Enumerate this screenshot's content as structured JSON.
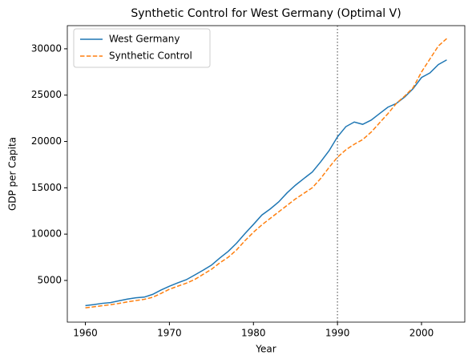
{
  "chart_data": {
    "type": "line",
    "title": "Synthetic Control for West Germany (Optimal V)",
    "xlabel": "Year",
    "ylabel": "GDP per Capita",
    "x": [
      1960,
      1961,
      1962,
      1963,
      1964,
      1965,
      1966,
      1967,
      1968,
      1969,
      1970,
      1971,
      1972,
      1973,
      1974,
      1975,
      1976,
      1977,
      1978,
      1979,
      1980,
      1981,
      1982,
      1983,
      1984,
      1985,
      1986,
      1987,
      1988,
      1989,
      1990,
      1991,
      1992,
      1993,
      1994,
      1995,
      1996,
      1997,
      1998,
      1999,
      2000,
      2001,
      2002,
      2003
    ],
    "series": [
      {
        "name": "West Germany",
        "color": "#1f77b4",
        "linestyle": "solid",
        "values": [
          2284,
          2388,
          2527,
          2610,
          2806,
          2990,
          3131,
          3198,
          3494,
          3968,
          4380,
          4742,
          5074,
          5583,
          6099,
          6645,
          7424,
          8140,
          9030,
          10066,
          11046,
          12060,
          12716,
          13474,
          14450,
          15280,
          16000,
          16700,
          17800,
          19000,
          20500,
          21600,
          22100,
          21850,
          22300,
          23000,
          23700,
          24100,
          24800,
          25700,
          26900,
          27400,
          28300,
          28800
        ]
      },
      {
        "name": "Synthetic Control",
        "color": "#ff7f0e",
        "linestyle": "dashed",
        "values": [
          2050,
          2150,
          2270,
          2380,
          2520,
          2680,
          2830,
          2960,
          3180,
          3600,
          4050,
          4380,
          4700,
          5100,
          5650,
          6200,
          6900,
          7500,
          8300,
          9300,
          10200,
          11000,
          11700,
          12400,
          13100,
          13800,
          14400,
          15000,
          16000,
          17200,
          18300,
          19100,
          19700,
          20200,
          21000,
          22000,
          23000,
          24100,
          24900,
          25800,
          27500,
          28900,
          30300,
          31100
        ]
      }
    ],
    "vline": 1990,
    "vline_color": "#808080",
    "xlim": [
      1957.85,
      2005.15
    ],
    "ylim": [
      500,
      32500
    ],
    "xticks": [
      1960,
      1970,
      1980,
      1990,
      2000
    ],
    "yticks": [
      5000,
      10000,
      15000,
      20000,
      25000,
      30000
    ],
    "grid": false,
    "legend": "upper left"
  }
}
